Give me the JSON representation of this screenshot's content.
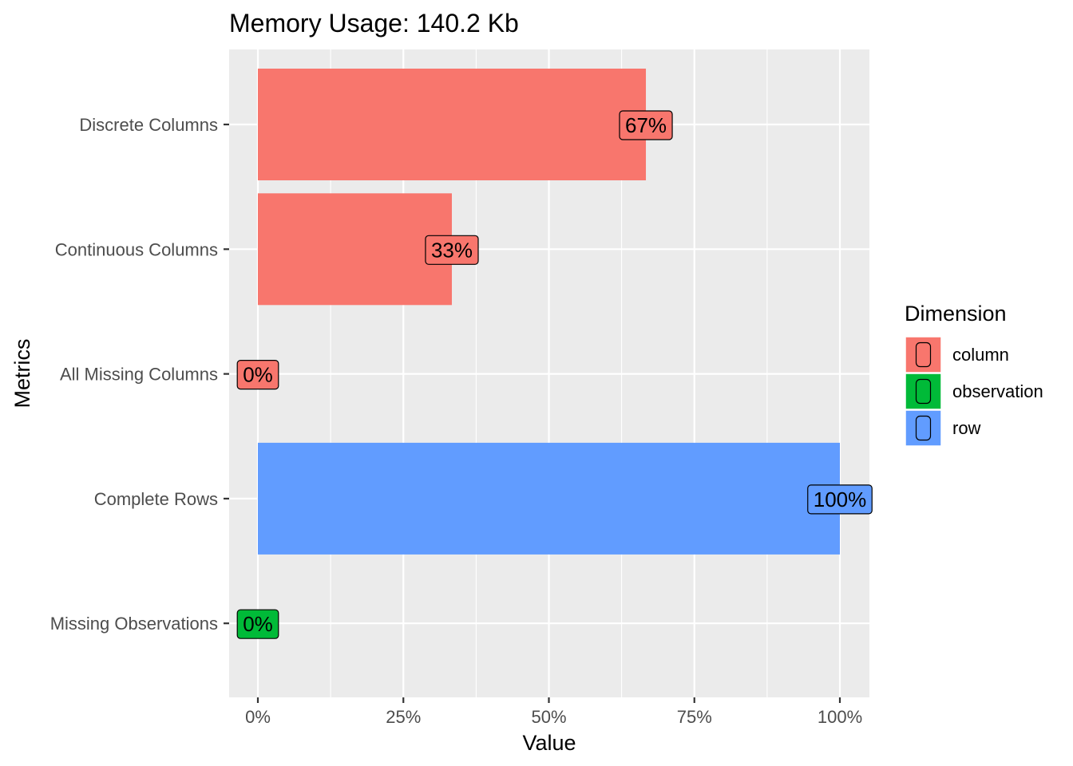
{
  "chart_data": {
    "type": "bar",
    "orientation": "horizontal",
    "title": "Memory Usage: 140.2 Kb",
    "xlabel": "Value",
    "ylabel": "Metrics",
    "xlim": [
      0,
      1
    ],
    "x_ticks": [
      "0%",
      "25%",
      "50%",
      "75%",
      "100%"
    ],
    "grid": true,
    "legend_position": "right",
    "legend": {
      "title": "Dimension",
      "entries": [
        {
          "name": "column",
          "color": "#F8766D"
        },
        {
          "name": "observation",
          "color": "#00BA38"
        },
        {
          "name": "row",
          "color": "#619CFF"
        }
      ]
    },
    "categories": [
      "Discrete Columns",
      "Continuous Columns",
      "All Missing Columns",
      "Complete Rows",
      "Missing Observations"
    ],
    "values": [
      0.6667,
      0.3333,
      0,
      1,
      0
    ],
    "dimension": [
      "column",
      "column",
      "column",
      "row",
      "observation"
    ],
    "labels": [
      "67%",
      "33%",
      "0%",
      "100%",
      "0%"
    ],
    "colors": {
      "panel_background": "#EBEBEB",
      "grid": "#FFFFFF",
      "column": "#F8766D",
      "observation": "#00BA38",
      "row": "#619CFF"
    }
  }
}
